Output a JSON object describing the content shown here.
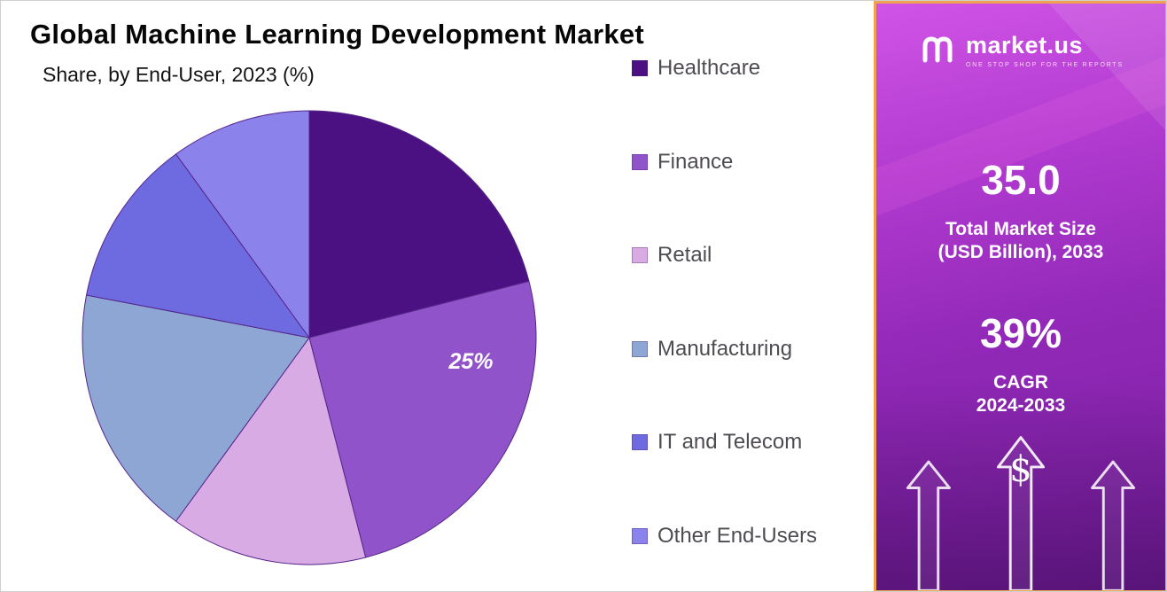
{
  "header": {
    "title": "Global Machine Learning Development Market",
    "subtitle": "Share, by End-User, 2023 (%)"
  },
  "chart_data": {
    "type": "pie",
    "title": "Global Machine Learning Development Market Share, by End-User, 2023 (%)",
    "unit": "percent",
    "start_angle_deg": 0,
    "direction": "clockwise",
    "legend_position": "right",
    "series": [
      {
        "name": "Healthcare",
        "value": 21,
        "color": "#4b1182",
        "label": ""
      },
      {
        "name": "Finance",
        "value": 25,
        "color": "#9153c9",
        "label": "25%"
      },
      {
        "name": "Retail",
        "value": 14,
        "color": "#d9abe5",
        "label": ""
      },
      {
        "name": "Manufacturing",
        "value": 18,
        "color": "#8ea6d4",
        "label": ""
      },
      {
        "name": "IT and Telecom",
        "value": 12,
        "color": "#6e6be1",
        "label": ""
      },
      {
        "name": "Other End-Users",
        "value": 10,
        "color": "#8b82ec",
        "label": ""
      }
    ]
  },
  "sidebar": {
    "brand": {
      "name": "market.us",
      "tagline": "ONE STOP SHOP FOR THE REPORTS"
    },
    "stats": [
      {
        "value": "35.0",
        "caption": "Total Market Size\n(USD Billion), 2033"
      },
      {
        "value": "39%",
        "caption": "CAGR\n2024-2033"
      }
    ],
    "dollar_symbol": "$",
    "accent_border_color": "#f0a24f",
    "gradient": [
      "#d054e6",
      "#7b1fa2"
    ]
  }
}
